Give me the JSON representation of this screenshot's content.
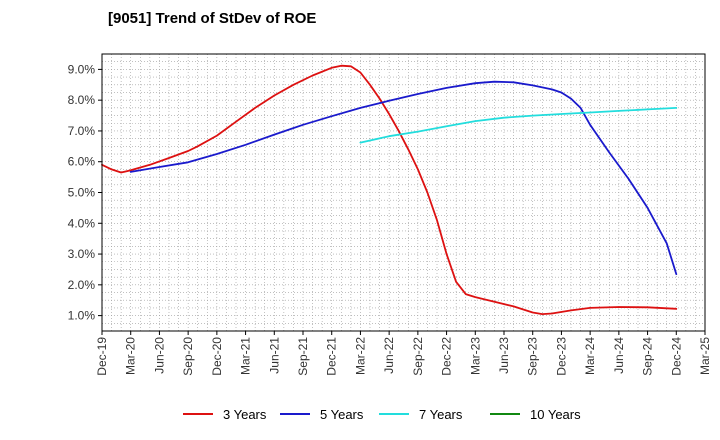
{
  "chart_data": {
    "type": "line",
    "title": "[9051]  Trend of StDev of ROE",
    "xlabel": "",
    "ylabel": "",
    "ylim": [
      0.5,
      9.5
    ],
    "yticks": [
      1.0,
      2.0,
      3.0,
      4.0,
      5.0,
      6.0,
      7.0,
      8.0,
      9.0
    ],
    "ytick_labels": [
      "1.0%",
      "2.0%",
      "3.0%",
      "4.0%",
      "5.0%",
      "6.0%",
      "7.0%",
      "8.0%",
      "9.0%"
    ],
    "xlim": [
      "2019-12",
      "2025-03"
    ],
    "xtick_labels": [
      "Dec-19",
      "Mar-20",
      "Jun-20",
      "Sep-20",
      "Dec-20",
      "Mar-21",
      "Jun-21",
      "Sep-21",
      "Dec-21",
      "Mar-22",
      "Jun-22",
      "Sep-22",
      "Dec-22",
      "Mar-23",
      "Jun-23",
      "Sep-23",
      "Dec-23",
      "Mar-24",
      "Jun-24",
      "Sep-24",
      "Dec-24",
      "Mar-25"
    ],
    "grid": true,
    "legend_position": "bottom",
    "series": [
      {
        "name": "3 Years",
        "color": "#dd1111",
        "points": [
          [
            "2019-12",
            5.9
          ],
          [
            "2020-01",
            5.75
          ],
          [
            "2020-02",
            5.65
          ],
          [
            "2020-03",
            5.72
          ],
          [
            "2020-05",
            5.9
          ],
          [
            "2020-07",
            6.12
          ],
          [
            "2020-09",
            6.35
          ],
          [
            "2020-10",
            6.5
          ],
          [
            "2020-12",
            6.85
          ],
          [
            "2021-02",
            7.3
          ],
          [
            "2021-04",
            7.75
          ],
          [
            "2021-06",
            8.15
          ],
          [
            "2021-08",
            8.5
          ],
          [
            "2021-10",
            8.8
          ],
          [
            "2021-12",
            9.05
          ],
          [
            "2022-01",
            9.12
          ],
          [
            "2022-02",
            9.1
          ],
          [
            "2022-03",
            8.9
          ],
          [
            "2022-04",
            8.5
          ],
          [
            "2022-05",
            8.05
          ],
          [
            "2022-06",
            7.55
          ],
          [
            "2022-07",
            7.0
          ],
          [
            "2022-08",
            6.4
          ],
          [
            "2022-09",
            5.75
          ],
          [
            "2022-10",
            5.0
          ],
          [
            "2022-11",
            4.1
          ],
          [
            "2022-12",
            3.0
          ],
          [
            "2023-01",
            2.1
          ],
          [
            "2023-02",
            1.7
          ],
          [
            "2023-03",
            1.6
          ],
          [
            "2023-05",
            1.45
          ],
          [
            "2023-07",
            1.3
          ],
          [
            "2023-09",
            1.1
          ],
          [
            "2023-10",
            1.05
          ],
          [
            "2023-11",
            1.07
          ],
          [
            "2024-01",
            1.17
          ],
          [
            "2024-03",
            1.25
          ],
          [
            "2024-06",
            1.28
          ],
          [
            "2024-09",
            1.27
          ],
          [
            "2024-12",
            1.22
          ]
        ]
      },
      {
        "name": "5 Years",
        "color": "#1a1acc",
        "points": [
          [
            "2020-03",
            5.67
          ],
          [
            "2020-06",
            5.83
          ],
          [
            "2020-09",
            5.98
          ],
          [
            "2020-12",
            6.25
          ],
          [
            "2021-03",
            6.55
          ],
          [
            "2021-06",
            6.88
          ],
          [
            "2021-09",
            7.2
          ],
          [
            "2021-12",
            7.48
          ],
          [
            "2022-03",
            7.75
          ],
          [
            "2022-06",
            7.98
          ],
          [
            "2022-09",
            8.2
          ],
          [
            "2022-12",
            8.4
          ],
          [
            "2023-03",
            8.55
          ],
          [
            "2023-05",
            8.6
          ],
          [
            "2023-07",
            8.58
          ],
          [
            "2023-09",
            8.48
          ],
          [
            "2023-11",
            8.35
          ],
          [
            "2023-12",
            8.25
          ],
          [
            "2024-01",
            8.05
          ],
          [
            "2024-02",
            7.75
          ],
          [
            "2024-03",
            7.2
          ],
          [
            "2024-05",
            6.3
          ],
          [
            "2024-07",
            5.45
          ],
          [
            "2024-09",
            4.5
          ],
          [
            "2024-11",
            3.35
          ],
          [
            "2024-12",
            2.35
          ]
        ]
      },
      {
        "name": "7 Years",
        "color": "#22dddd",
        "points": [
          [
            "2022-03",
            6.62
          ],
          [
            "2022-06",
            6.83
          ],
          [
            "2022-09",
            6.98
          ],
          [
            "2022-12",
            7.15
          ],
          [
            "2023-03",
            7.32
          ],
          [
            "2023-06",
            7.43
          ],
          [
            "2023-09",
            7.5
          ],
          [
            "2023-12",
            7.55
          ],
          [
            "2024-03",
            7.6
          ],
          [
            "2024-06",
            7.65
          ],
          [
            "2024-09",
            7.7
          ],
          [
            "2024-12",
            7.75
          ]
        ]
      },
      {
        "name": "10 Years",
        "color": "#118811",
        "points": []
      }
    ]
  }
}
